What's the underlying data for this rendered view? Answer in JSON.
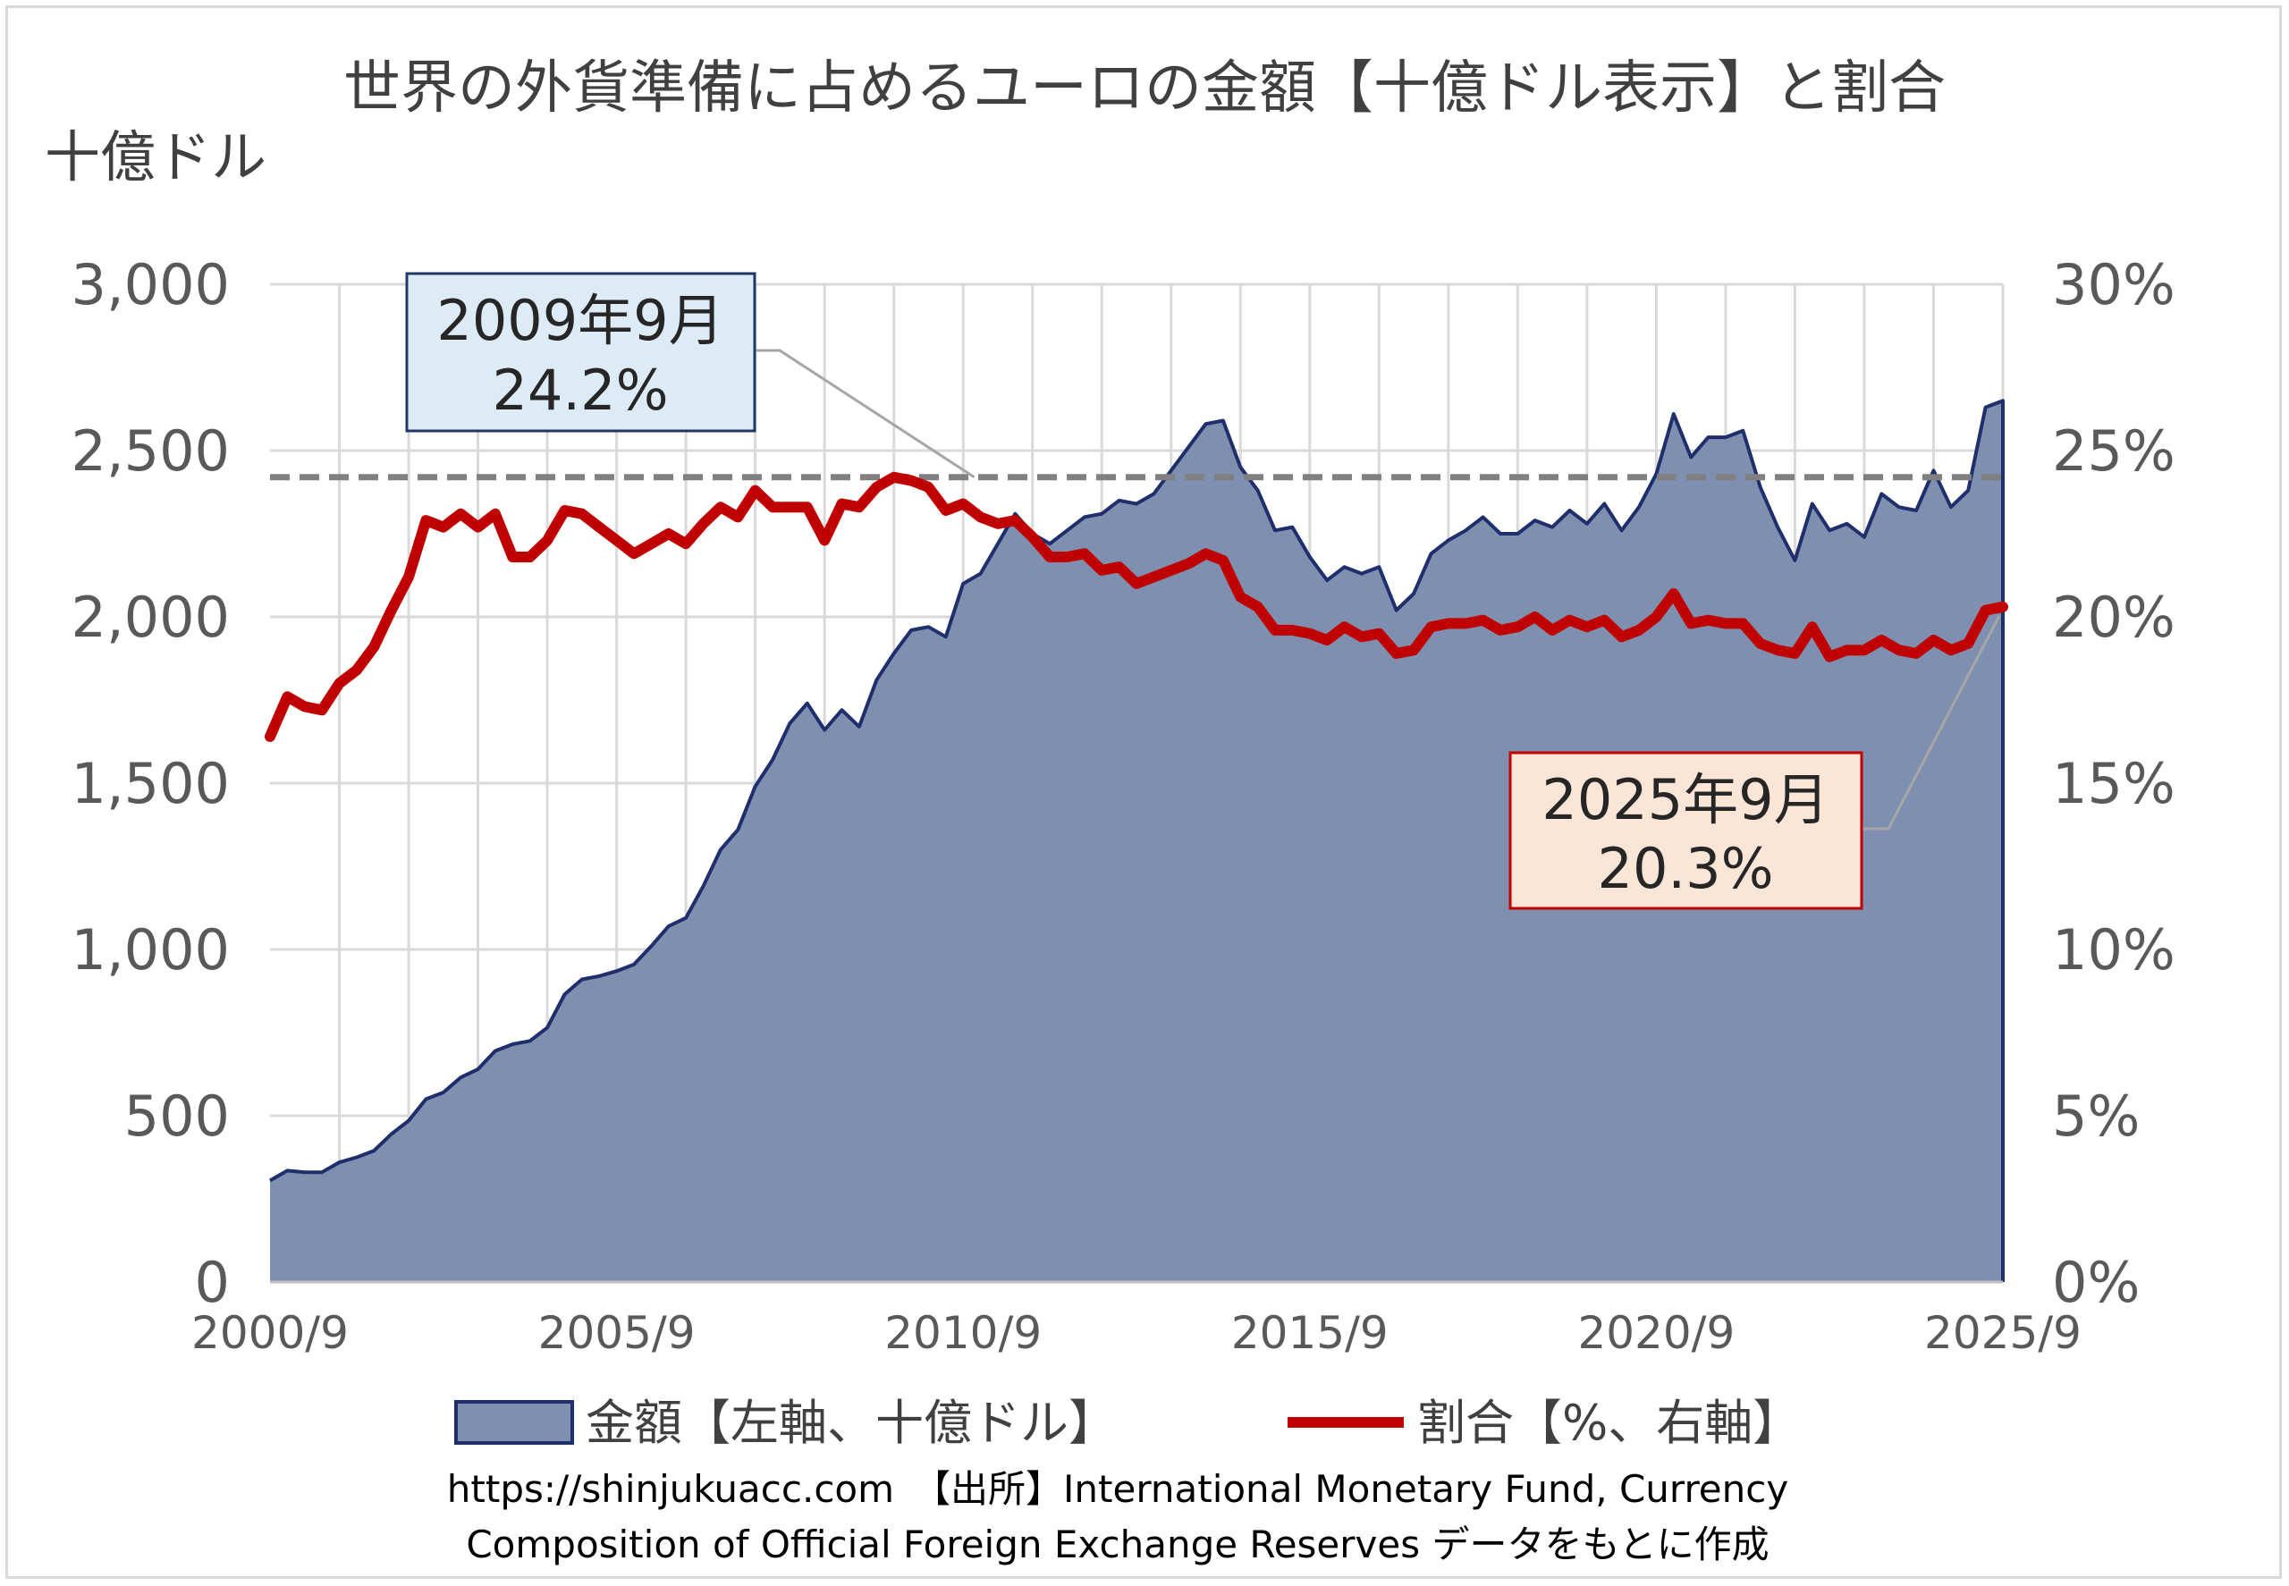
{
  "chart_data": {
    "type": "area+line",
    "title": "世界の外貨準備に占めるユーロの金額【十億ドル表示】と割合",
    "ylabel_left": "十億ドル",
    "y_left_ticks": [
      "0",
      "500",
      "1,000",
      "1,500",
      "2,000",
      "2,500",
      "3,000"
    ],
    "y_right_ticks": [
      "0%",
      "5%",
      "10%",
      "15%",
      "20%",
      "25%",
      "30%"
    ],
    "x_ticks": [
      "2000/9",
      "2005/9",
      "2010/9",
      "2015/9",
      "2020/9",
      "2025/9"
    ],
    "ylim_left": [
      0,
      3000
    ],
    "ylim_right": [
      0,
      30
    ],
    "grid": true,
    "legend_position": "bottom",
    "reference_line_value": 24.2,
    "series": [
      {
        "name": "金額【左軸、十億ドル】",
        "type": "area",
        "axis": "left",
        "fill_color": "#7f8fb0",
        "line_color": "#1f2f6b",
        "x_start": "2000/9",
        "freq": "quarterly",
        "values": [
          305,
          335,
          330,
          330,
          360,
          375,
          395,
          445,
          485,
          550,
          570,
          615,
          640,
          695,
          715,
          725,
          765,
          865,
          910,
          920,
          935,
          955,
          1010,
          1070,
          1095,
          1190,
          1300,
          1360,
          1490,
          1570,
          1680,
          1740,
          1660,
          1720,
          1670,
          1810,
          1890,
          1960,
          1970,
          1940,
          2100,
          2130,
          2220,
          2310,
          2250,
          2220,
          2260,
          2300,
          2310,
          2350,
          2340,
          2370,
          2440,
          2510,
          2580,
          2590,
          2450,
          2380,
          2260,
          2270,
          2180,
          2110,
          2150,
          2130,
          2150,
          2020,
          2070,
          2190,
          2230,
          2260,
          2300,
          2250,
          2250,
          2290,
          2270,
          2320,
          2280,
          2340,
          2260,
          2330,
          2430,
          2610,
          2480,
          2540,
          2540,
          2560,
          2390,
          2270,
          2170,
          2340,
          2260,
          2280,
          2240,
          2370,
          2330,
          2320,
          2440,
          2330,
          2380,
          2630,
          2650
        ]
      },
      {
        "name": "割合【%、右軸】",
        "type": "line",
        "axis": "right",
        "line_color": "#c00000",
        "x_start": "2000/9",
        "freq": "quarterly",
        "values": [
          16.4,
          17.6,
          17.3,
          17.2,
          18.0,
          18.4,
          19.1,
          20.2,
          21.2,
          22.9,
          22.7,
          23.1,
          22.7,
          23.1,
          21.8,
          21.8,
          22.3,
          23.2,
          23.1,
          22.7,
          22.3,
          21.9,
          22.2,
          22.5,
          22.2,
          22.8,
          23.3,
          23.0,
          23.8,
          23.3,
          23.3,
          23.3,
          22.3,
          23.4,
          23.3,
          23.9,
          24.2,
          24.1,
          23.9,
          23.2,
          23.4,
          23.0,
          22.8,
          22.9,
          22.4,
          21.8,
          21.8,
          21.9,
          21.4,
          21.5,
          21.0,
          21.2,
          21.4,
          21.6,
          21.9,
          21.7,
          20.6,
          20.3,
          19.6,
          19.6,
          19.5,
          19.3,
          19.7,
          19.4,
          19.5,
          18.9,
          19.0,
          19.7,
          19.8,
          19.8,
          19.9,
          19.6,
          19.7,
          20.0,
          19.6,
          19.9,
          19.7,
          19.9,
          19.4,
          19.6,
          20.0,
          20.7,
          19.8,
          19.9,
          19.8,
          19.8,
          19.2,
          19.0,
          18.9,
          19.7,
          18.8,
          19.0,
          19.0,
          19.3,
          19.0,
          18.9,
          19.3,
          19.0,
          19.2,
          20.2,
          20.3
        ]
      }
    ],
    "annotations": [
      {
        "label_line1": "2009年9月",
        "label_line2": "24.2%",
        "box_fill": "#ddebf7",
        "box_border": "#1f3864",
        "point_index": 36,
        "point_value": 24.2
      },
      {
        "label_line1": "2025年9月",
        "label_line2": "20.3%",
        "box_fill": "#fbe5d6",
        "box_border": "#c00000",
        "point_index": 100,
        "point_value": 20.3
      }
    ]
  },
  "footer": {
    "line1": "https://shinjukuacc.com　【出所】International Monetary Fund, Currency",
    "line2": "Composition of Official Foreign Exchange Reserves データをもとに作成"
  }
}
